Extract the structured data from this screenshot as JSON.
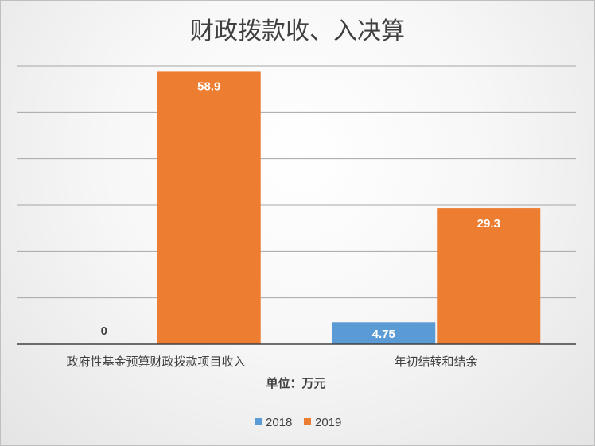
{
  "chart_data": {
    "type": "bar",
    "title": "财政拨款收、入决算",
    "xlabel": "单位：万元",
    "ylabel": "",
    "ylim": [
      0,
      60
    ],
    "grid": true,
    "legend_position": "bottom",
    "categories": [
      "政府性基金预算财政拨款项目收入",
      "年初结转和结余"
    ],
    "series": [
      {
        "name": "2018",
        "color": "#5b9bd5",
        "values": [
          0,
          4.75
        ],
        "labels": [
          "0",
          "4.75"
        ]
      },
      {
        "name": "2019",
        "color": "#ed7d31",
        "values": [
          58.9,
          29.3
        ],
        "labels": [
          "58.9",
          "29.3"
        ]
      }
    ],
    "label_colors": {
      "on_bar": "#ffffff",
      "zero": "#404040"
    },
    "gridline_color": "#a6a6a6",
    "axis_color": "#404040"
  }
}
